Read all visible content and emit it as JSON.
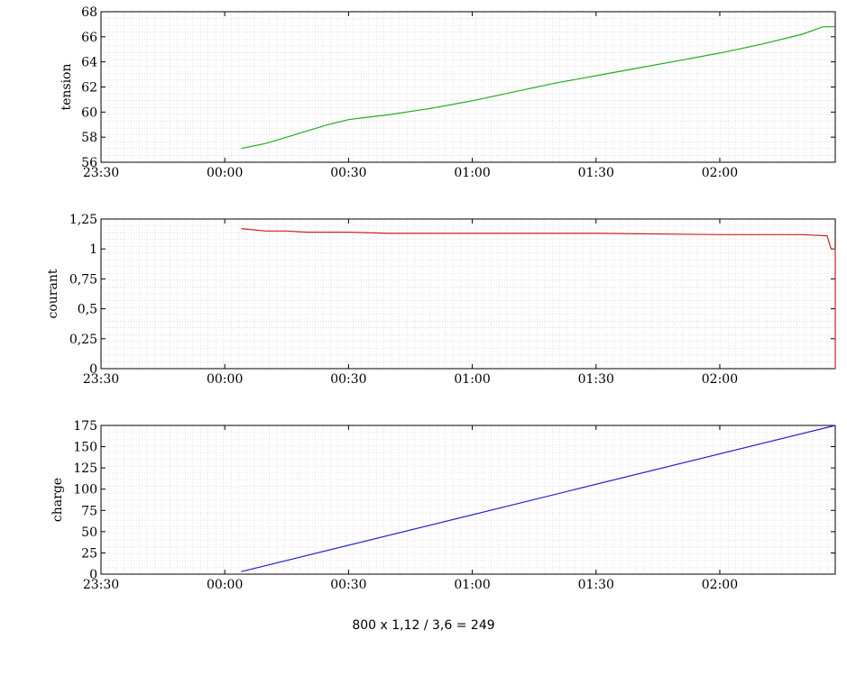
{
  "caption": "800 x 1,12 / 3,6 = 249",
  "chart_data": [
    {
      "type": "line",
      "ylabel": "tension",
      "x_tick_labels": [
        "23:30",
        "00:00",
        "00:30",
        "01:00",
        "01:30",
        "02:00"
      ],
      "x_ticks": [
        "23:30",
        "00:00",
        "00:30",
        "01:00",
        "01:30",
        "02:00"
      ],
      "xlim": [
        "23:30",
        "02:28"
      ],
      "ylim": [
        56,
        68
      ],
      "y_ticks": [
        56,
        58,
        60,
        62,
        64,
        66,
        68
      ],
      "y_tick_labels": [
        "56",
        "58",
        "60",
        "62",
        "64",
        "66",
        "68"
      ],
      "grid": true,
      "color": "#22aa22",
      "series": [
        {
          "x": [
            "00:04",
            "00:10",
            "00:15",
            "00:20",
            "00:25",
            "00:30",
            "00:35",
            "00:40",
            "00:50",
            "01:00",
            "01:10",
            "01:20",
            "01:30",
            "01:40",
            "01:50",
            "02:00",
            "02:10",
            "02:20",
            "02:25",
            "02:28"
          ],
          "values": [
            57.1,
            57.5,
            58.0,
            58.5,
            59.0,
            59.4,
            59.6,
            59.8,
            60.3,
            60.9,
            61.6,
            62.3,
            62.9,
            63.5,
            64.1,
            64.7,
            65.4,
            66.2,
            66.8,
            66.8
          ]
        }
      ]
    },
    {
      "type": "line",
      "ylabel": "courant",
      "x_tick_labels": [
        "23:30",
        "00:00",
        "00:30",
        "01:00",
        "01:30",
        "02:00"
      ],
      "x_ticks": [
        "23:30",
        "00:00",
        "00:30",
        "01:00",
        "01:30",
        "02:00"
      ],
      "xlim": [
        "23:30",
        "02:28"
      ],
      "ylim": [
        0,
        1.25
      ],
      "y_ticks": [
        0,
        0.25,
        0.5,
        0.75,
        1,
        1.25
      ],
      "y_tick_labels": [
        "0",
        "0,25",
        "0,5",
        "0,75",
        "1",
        "1,25"
      ],
      "grid": true,
      "color": "#cc2222",
      "series": [
        {
          "x": [
            "00:04",
            "00:07",
            "00:10",
            "00:15",
            "00:20",
            "00:30",
            "00:40",
            "01:00",
            "01:30",
            "02:00",
            "02:20",
            "02:26",
            "02:27",
            "02:28",
            "02:28"
          ],
          "values": [
            1.17,
            1.16,
            1.15,
            1.15,
            1.14,
            1.14,
            1.13,
            1.13,
            1.13,
            1.12,
            1.12,
            1.11,
            1.0,
            1.0,
            0.0
          ]
        }
      ]
    },
    {
      "type": "line",
      "ylabel": "charge",
      "x_tick_labels": [
        "23:30",
        "00:00",
        "00:30",
        "01:00",
        "01:30",
        "02:00"
      ],
      "x_ticks": [
        "23:30",
        "00:00",
        "00:30",
        "01:00",
        "01:30",
        "02:00"
      ],
      "xlim": [
        "23:30",
        "02:28"
      ],
      "ylim": [
        0,
        175
      ],
      "y_ticks": [
        0,
        25,
        50,
        75,
        100,
        125,
        150,
        175
      ],
      "y_tick_labels": [
        "0",
        "25",
        "50",
        "75",
        "100",
        "125",
        "150",
        "175"
      ],
      "grid": true,
      "color": "#2222cc",
      "series": [
        {
          "x": [
            "00:04",
            "02:28"
          ],
          "values": [
            3,
            175
          ]
        }
      ]
    }
  ]
}
